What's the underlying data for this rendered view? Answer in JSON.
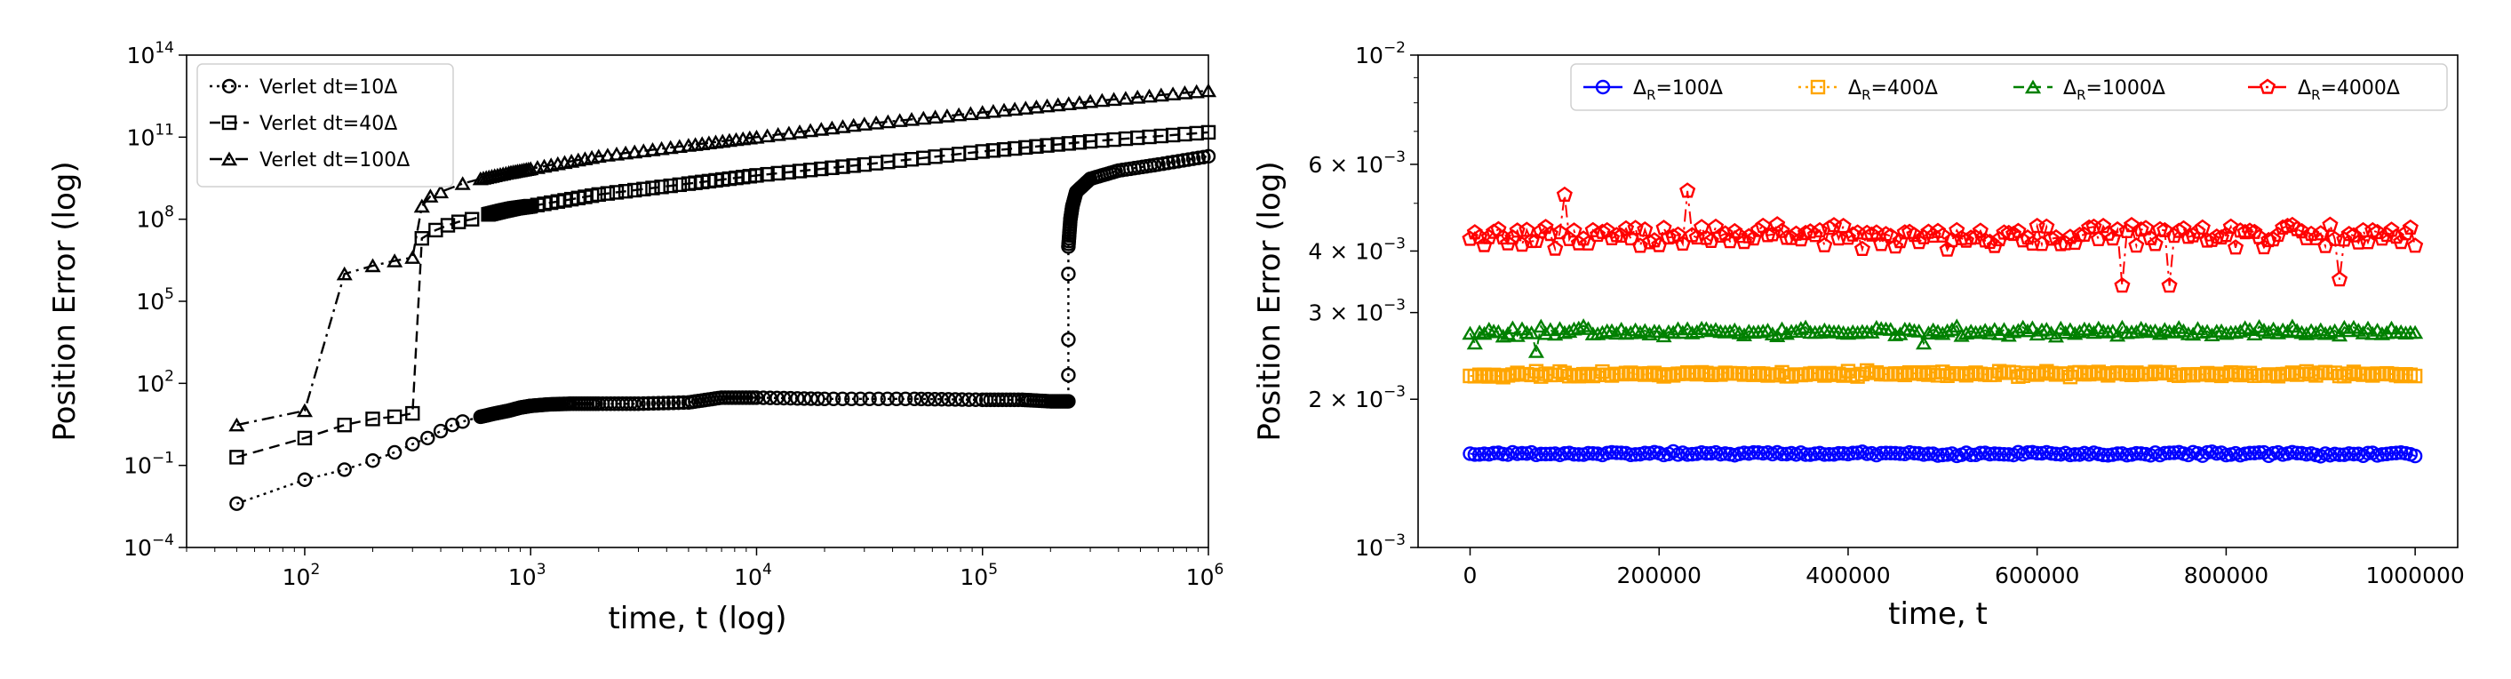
{
  "chart_data": [
    {
      "type": "scatter",
      "xlabel": "time, t (log)",
      "ylabel": "Position Error (log)",
      "xscale": "log",
      "yscale": "log",
      "xlim": [
        30,
        1000000
      ],
      "ylim": [
        0.0001,
        100000000000000
      ],
      "x_ticks": [
        {
          "value": 100,
          "base": "10",
          "exp": "2"
        },
        {
          "value": 1000,
          "base": "10",
          "exp": "3"
        },
        {
          "value": 10000,
          "base": "10",
          "exp": "4"
        },
        {
          "value": 100000,
          "base": "10",
          "exp": "5"
        },
        {
          "value": 1000000,
          "base": "10",
          "exp": "6"
        }
      ],
      "y_ticks": [
        {
          "value": 0.0001,
          "base": "10",
          "exp": "−4"
        },
        {
          "value": 0.1,
          "base": "10",
          "exp": "−1"
        },
        {
          "value": 100,
          "base": "10",
          "exp": "2"
        },
        {
          "value": 100000,
          "base": "10",
          "exp": "5"
        },
        {
          "value": 100000000,
          "base": "10",
          "exp": "8"
        },
        {
          "value": 100000000000,
          "base": "10",
          "exp": "11"
        },
        {
          "value": 100000000000000,
          "base": "10",
          "exp": "14"
        }
      ],
      "legend_position": "top-left",
      "grid": false,
      "series": [
        {
          "name": "Verlet dt=10Δ",
          "marker": "circle",
          "linestyle": "dotted",
          "color": "#000000",
          "points": [
            [
              50,
              0.004
            ],
            [
              100,
              0.03
            ],
            [
              150,
              0.07
            ],
            [
              200,
              0.15
            ],
            [
              250,
              0.3
            ],
            [
              300,
              0.6
            ],
            [
              350,
              1
            ],
            [
              400,
              1.8
            ],
            [
              450,
              3
            ],
            [
              500,
              4
            ],
            [
              600,
              6
            ],
            [
              700,
              8
            ],
            [
              800,
              10
            ],
            [
              900,
              13
            ],
            [
              1000,
              15
            ],
            [
              1200,
              17
            ],
            [
              1500,
              18
            ],
            [
              2000,
              18
            ],
            [
              3000,
              18
            ],
            [
              5000,
              20
            ],
            [
              7000,
              30
            ],
            [
              10000,
              30
            ],
            [
              20000,
              27
            ],
            [
              50000,
              27
            ],
            [
              100000,
              25
            ],
            [
              150000,
              25
            ],
            [
              200000,
              22
            ],
            [
              240000,
              22
            ],
            [
              240000,
              200
            ],
            [
              240000,
              4000
            ],
            [
              240000,
              1000000
            ],
            [
              240000,
              10000000
            ],
            [
              245000,
              100000000
            ],
            [
              250000,
              300000000
            ],
            [
              260000,
              1000000000
            ],
            [
              300000,
              3000000000
            ],
            [
              400000,
              6000000000
            ],
            [
              600000,
              10000000000
            ],
            [
              1000000,
              20000000000
            ]
          ]
        },
        {
          "name": "Verlet dt=40Δ",
          "marker": "square",
          "linestyle": "dashed",
          "color": "#000000",
          "points": [
            [
              50,
              0.2
            ],
            [
              100,
              1
            ],
            [
              150,
              3
            ],
            [
              200,
              5
            ],
            [
              250,
              6
            ],
            [
              300,
              8
            ],
            [
              330,
              20000000
            ],
            [
              380,
              40000000
            ],
            [
              430,
              60000000
            ],
            [
              480,
              80000000
            ],
            [
              550,
              100000000
            ],
            [
              650,
              150000000
            ],
            [
              750,
              200000000
            ],
            [
              850,
              250000000
            ],
            [
              1000,
              300000000
            ],
            [
              2000,
              800000000
            ],
            [
              5000,
              2000000000
            ],
            [
              10000,
              4000000000
            ],
            [
              30000,
              10000000000
            ],
            [
              100000,
              30000000000
            ],
            [
              300000,
              70000000000
            ],
            [
              1000000,
              150000000000
            ]
          ]
        },
        {
          "name": "Verlet dt=100Δ",
          "marker": "triangle",
          "linestyle": "dashdot",
          "color": "#000000",
          "points": [
            [
              50,
              3
            ],
            [
              100,
              10
            ],
            [
              150,
              1000000
            ],
            [
              200,
              2000000
            ],
            [
              250,
              3000000
            ],
            [
              300,
              4000000
            ],
            [
              330,
              300000000
            ],
            [
              360,
              700000000
            ],
            [
              400,
              1000000000
            ],
            [
              500,
              2000000000
            ],
            [
              600,
              3000000000
            ],
            [
              800,
              5000000000
            ],
            [
              1000,
              7000000000
            ],
            [
              2000,
              20000000000
            ],
            [
              5000,
              50000000000
            ],
            [
              10000,
              100000000000
            ],
            [
              30000,
              300000000000
            ],
            [
              100000,
              800000000000
            ],
            [
              300000,
              2000000000000
            ],
            [
              1000000,
              5000000000000
            ]
          ]
        }
      ]
    },
    {
      "type": "line",
      "xlabel": "time, t",
      "ylabel": "Position Error (log)",
      "xscale": "linear",
      "yscale": "log",
      "xlim": [
        -55000,
        1045000
      ],
      "ylim": [
        0.001,
        0.01
      ],
      "x_ticks": [
        {
          "value": 0,
          "label": "0"
        },
        {
          "value": 200000,
          "label": "200000"
        },
        {
          "value": 400000,
          "label": "400000"
        },
        {
          "value": 600000,
          "label": "600000"
        },
        {
          "value": 800000,
          "label": "800000"
        },
        {
          "value": 1000000,
          "label": "1000000"
        }
      ],
      "y_ticks": [
        {
          "value": 0.001,
          "mant": "",
          "base": "10",
          "exp": "−3"
        },
        {
          "value": 0.002,
          "mant": "2 × ",
          "base": "10",
          "exp": "−3"
        },
        {
          "value": 0.003,
          "mant": "3 × ",
          "base": "10",
          "exp": "−3"
        },
        {
          "value": 0.004,
          "mant": "4 × ",
          "base": "10",
          "exp": "−3"
        },
        {
          "value": 0.006,
          "mant": "6 × ",
          "base": "10",
          "exp": "−3"
        },
        {
          "value": 0.01,
          "mant": "",
          "base": "10",
          "exp": "−2"
        }
      ],
      "y_minor_ticks": [
        0.005,
        0.007,
        0.008,
        0.009
      ],
      "legend_position": "top-right",
      "legend_ncol": 4,
      "grid": false,
      "series": [
        {
          "name": "ΔR=100Δ",
          "label_main": "Δ",
          "label_sub": "R",
          "label_rest": "=100Δ",
          "marker": "circle",
          "linestyle": "solid",
          "color": "#0000ff",
          "mean": 0.00155,
          "spread": 2e-05,
          "spikes": []
        },
        {
          "name": "ΔR=400Δ",
          "label_main": "Δ",
          "label_sub": "R",
          "label_rest": "=400Δ",
          "marker": "square",
          "linestyle": "dotted",
          "color": "#ffa500",
          "mean": 0.00225,
          "spread": 4e-05,
          "spikes": []
        },
        {
          "name": "ΔR=1000Δ",
          "label_main": "Δ",
          "label_sub": "R",
          "label_rest": "=1000Δ",
          "marker": "triangle",
          "linestyle": "dashed",
          "color": "#008000",
          "mean": 0.00275,
          "spread": 8e-05,
          "spikes": [
            [
              5000,
              0.0026
            ],
            [
              70000,
              0.0025
            ],
            [
              480000,
              0.0026
            ]
          ]
        },
        {
          "name": "ΔR=4000Δ",
          "label_main": "Δ",
          "label_sub": "R",
          "label_rest": "=4000Δ",
          "marker": "pentagon",
          "linestyle": "dashdot",
          "color": "#ff0000",
          "mean": 0.0043,
          "spread": 0.00035,
          "spikes": [
            [
              100000,
              0.0052
            ],
            [
              230000,
              0.0053
            ],
            [
              690000,
              0.0034
            ],
            [
              740000,
              0.0034
            ],
            [
              920000,
              0.0035
            ]
          ]
        }
      ]
    }
  ]
}
